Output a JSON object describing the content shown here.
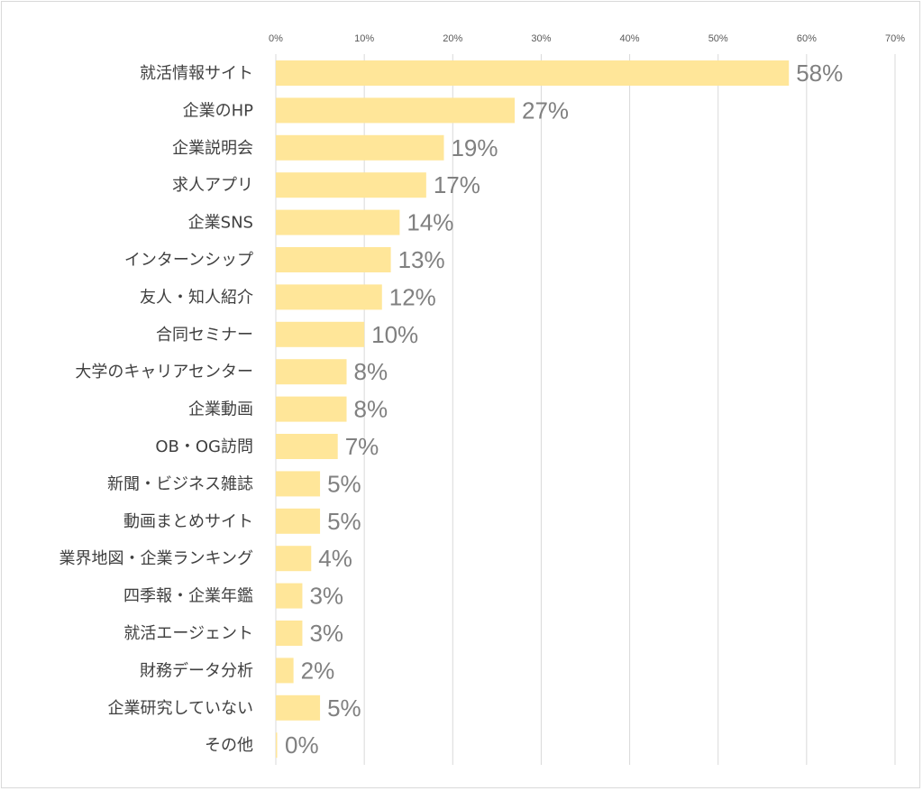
{
  "chart_data": {
    "type": "bar",
    "orientation": "horizontal",
    "title": "",
    "xlabel": "",
    "ylabel": "",
    "xlim": [
      0,
      70
    ],
    "x_ticks": [
      "0%",
      "10%",
      "20%",
      "30%",
      "40%",
      "50%",
      "60%",
      "70%"
    ],
    "x_tick_values": [
      0,
      10,
      20,
      30,
      40,
      50,
      60,
      70
    ],
    "grid": "vertical",
    "legend": "none",
    "bar_color": "#ffe699",
    "categories": [
      "就活情報サイト",
      "企業のHP",
      "企業説明会",
      "求人アプリ",
      "企業SNS",
      "インターンシップ",
      "友人・知人紹介",
      "合同セミナー",
      "大学のキャリアセンター",
      "企業動画",
      "OB・OG訪問",
      "新聞・ビジネス雑誌",
      "動画まとめサイト",
      "業界地図・企業ランキング",
      "四季報・企業年鑑",
      "就活エージェント",
      "財務データ分析",
      "企業研究していない",
      "その他"
    ],
    "values": [
      58,
      27,
      19,
      17,
      14,
      13,
      12,
      10,
      8,
      8,
      7,
      5,
      5,
      4,
      3,
      3,
      2,
      5,
      0
    ],
    "data_labels": [
      "58%",
      "27%",
      "19%",
      "17%",
      "14%",
      "13%",
      "12%",
      "10%",
      "8%",
      "8%",
      "7%",
      "5%",
      "5%",
      "4%",
      "3%",
      "3%",
      "2%",
      "5%",
      "0%"
    ]
  }
}
